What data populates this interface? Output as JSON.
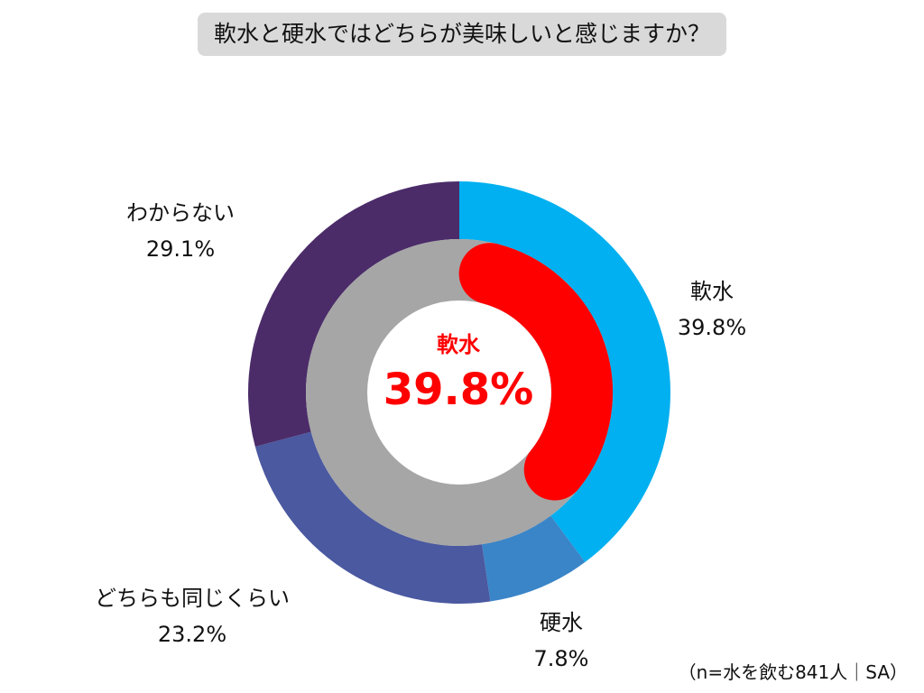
{
  "chart_data": {
    "type": "pie",
    "title": "軟水と硬水ではどちらが美味しいと感じますか？",
    "categories": [
      "軟水",
      "硬水",
      "どちらも同じくらい",
      "わからない"
    ],
    "values": [
      39.8,
      7.8,
      23.2,
      29.1
    ],
    "value_labels": [
      "39.8%",
      "7.8%",
      "23.2%",
      "29.1%"
    ],
    "colors": [
      "#00b0f0",
      "#3a85c8",
      "#4a59a0",
      "#4b2c69"
    ],
    "highlight": {
      "label": "軟水",
      "value": 39.8,
      "value_label": "39.8%",
      "color": "#ff0000",
      "track_color": "#a6a6a6"
    },
    "note": "（n=水を飲む841人｜SA）"
  }
}
